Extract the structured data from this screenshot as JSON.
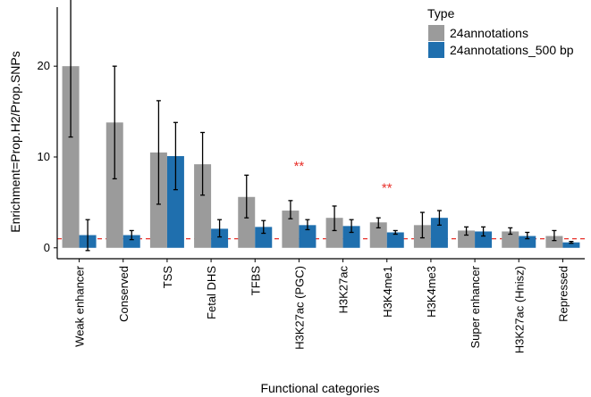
{
  "chart_data": {
    "type": "bar",
    "xlabel": "Functional categories",
    "ylabel": "Enrichment=Prop.H2/Prop.SNPs",
    "ylim": [
      -1.2,
      26.5
    ],
    "yticks": [
      0,
      10,
      20
    ],
    "reference_line": {
      "y": 1,
      "color": "#e8302a",
      "style": "dashed"
    },
    "grid": false,
    "legend": {
      "title": "Type",
      "placement": "top-right"
    },
    "categories": [
      "Weak enhancer",
      "Conserved",
      "TSS",
      "Fetal DHS",
      "TFBS",
      "H3K27ac (PGC)",
      "H3K27ac",
      "H3K4me1",
      "H3K4me3",
      "Super enhancer",
      "H3K27ac (Hnisz)",
      "Repressed"
    ],
    "series": [
      {
        "name": "24annotations",
        "color": "#9b9b9b",
        "values": [
          20.0,
          13.8,
          10.5,
          9.2,
          5.6,
          4.1,
          3.3,
          2.8,
          2.5,
          1.9,
          1.8,
          1.3
        ],
        "error_low": [
          12.2,
          7.6,
          4.8,
          5.8,
          3.3,
          3.2,
          1.9,
          2.2,
          1.1,
          1.4,
          1.5,
          0.8
        ],
        "error_high": [
          27.8,
          20.0,
          16.2,
          12.7,
          8.0,
          5.2,
          4.6,
          3.3,
          3.9,
          2.3,
          2.2,
          1.9
        ]
      },
      {
        "name": "24annotations_500 bp",
        "color": "#1f6fae",
        "values": [
          1.4,
          1.4,
          10.1,
          2.1,
          2.3,
          2.5,
          2.4,
          1.7,
          3.3,
          1.8,
          1.3,
          0.6
        ],
        "error_low": [
          -0.3,
          0.9,
          6.4,
          1.2,
          1.6,
          2.0,
          1.7,
          1.5,
          2.5,
          1.3,
          1.0,
          0.5
        ],
        "error_high": [
          3.1,
          1.9,
          13.8,
          3.1,
          3.0,
          3.1,
          3.1,
          1.9,
          4.1,
          2.3,
          1.7,
          0.7
        ]
      }
    ],
    "annotations": [
      {
        "category": "H3K27ac (PGC)",
        "text": "**",
        "y": 9.0,
        "color": "#e8302a"
      },
      {
        "category": "H3K4me1",
        "text": "**",
        "y": 6.6,
        "color": "#e8302a"
      }
    ]
  }
}
